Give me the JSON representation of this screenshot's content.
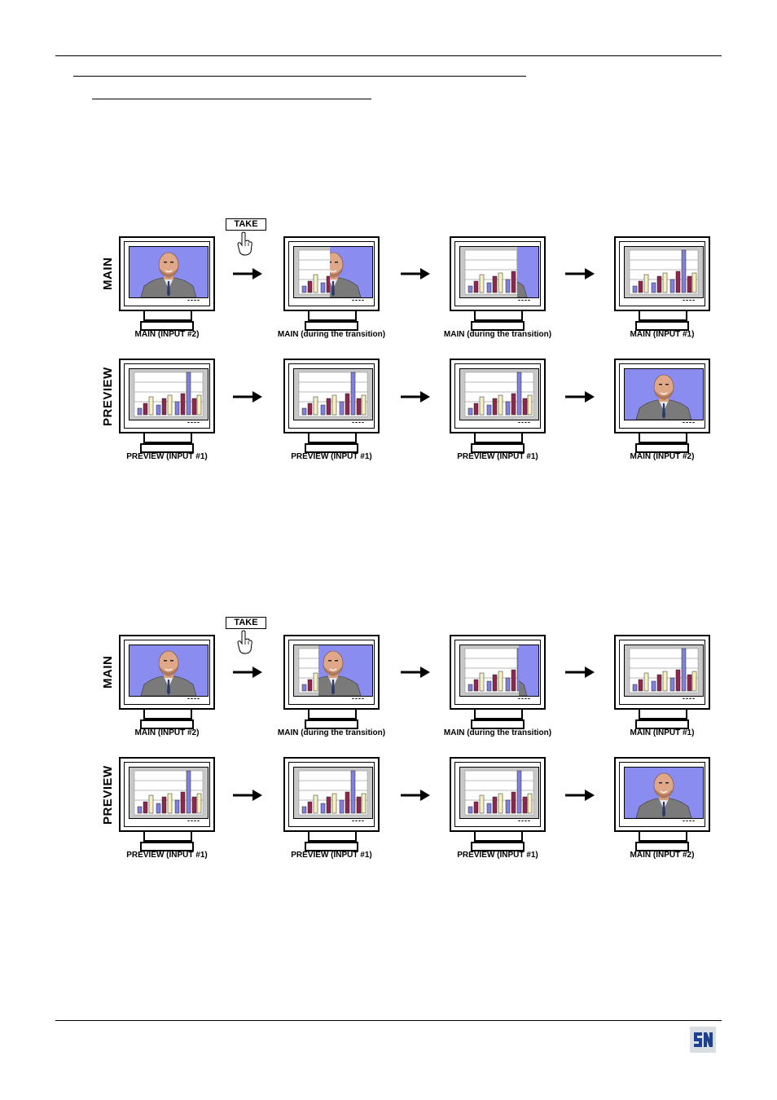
{
  "take_button_label": "TAKE",
  "rows": {
    "main_label": "MAIN",
    "preview_label": "PREVIEW"
  },
  "screen_marker": "----",
  "diagram_1": {
    "main_captions": [
      "MAIN (INPUT #2)",
      "MAIN (during the transition)",
      "MAIN (during the transition)",
      "MAIN (INPUT #1)"
    ],
    "preview_captions": [
      "PREVIEW (INPUT #1)",
      "PREVIEW (INPUT #1)",
      "PREVIEW (INPUT #1)",
      "MAIN (INPUT #2)"
    ]
  },
  "diagram_2": {
    "main_captions": [
      "MAIN (INPUT #2)",
      "MAIN (during the transition)",
      "MAIN (during the transition)",
      "MAIN (INPUT #1)"
    ],
    "preview_captions": [
      "PREVIEW (INPUT #1)",
      "PREVIEW (INPUT #1)",
      "PREVIEW (INPUT #1)",
      "MAIN (INPUT #2)"
    ]
  },
  "colors": {
    "portrait_background": "#8a8cf0",
    "chart_background": "#c8c8c8",
    "bar_purple": "#8080e0",
    "bar_maroon": "#8c2850",
    "bar_cream": "#f4f0c0"
  },
  "icons": {
    "take_hand": "pointing-hand-icon",
    "arrow": "right-arrow-icon",
    "logo": "company-logo-icon"
  }
}
